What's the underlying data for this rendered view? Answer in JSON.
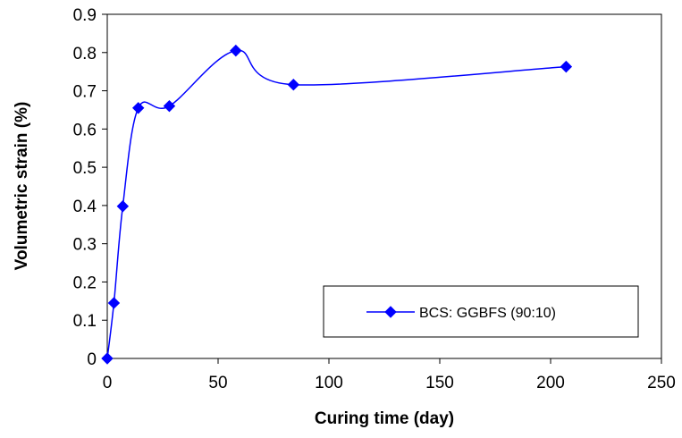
{
  "chart_data": {
    "type": "line",
    "xlabel": "Curing time (day)",
    "ylabel": "Volumetric strain (%)",
    "xlim": [
      0,
      250
    ],
    "ylim": [
      0,
      0.9
    ],
    "xticks": [
      0,
      50,
      100,
      150,
      200,
      250
    ],
    "xtick_labels": [
      "0",
      "50",
      "100",
      "150",
      "200",
      "250"
    ],
    "yticks": [
      0,
      0.1,
      0.2,
      0.3,
      0.4,
      0.5,
      0.6,
      0.7,
      0.8,
      0.9
    ],
    "ytick_labels": [
      "0",
      "0.1",
      "0.2",
      "0.3",
      "0.4",
      "0.5",
      "0.6",
      "0.7",
      "0.8",
      "0.9"
    ],
    "grid": false,
    "legend_position": "bottom-right",
    "series": [
      {
        "name": "BCS: GGBFS (90:10)",
        "color": "#0000FF",
        "marker": "diamond",
        "smooth": true,
        "x": [
          0,
          3,
          7,
          14,
          28,
          58,
          84,
          207
        ],
        "y": [
          0,
          0.145,
          0.398,
          0.655,
          0.66,
          0.805,
          0.716,
          0.763
        ]
      }
    ]
  }
}
